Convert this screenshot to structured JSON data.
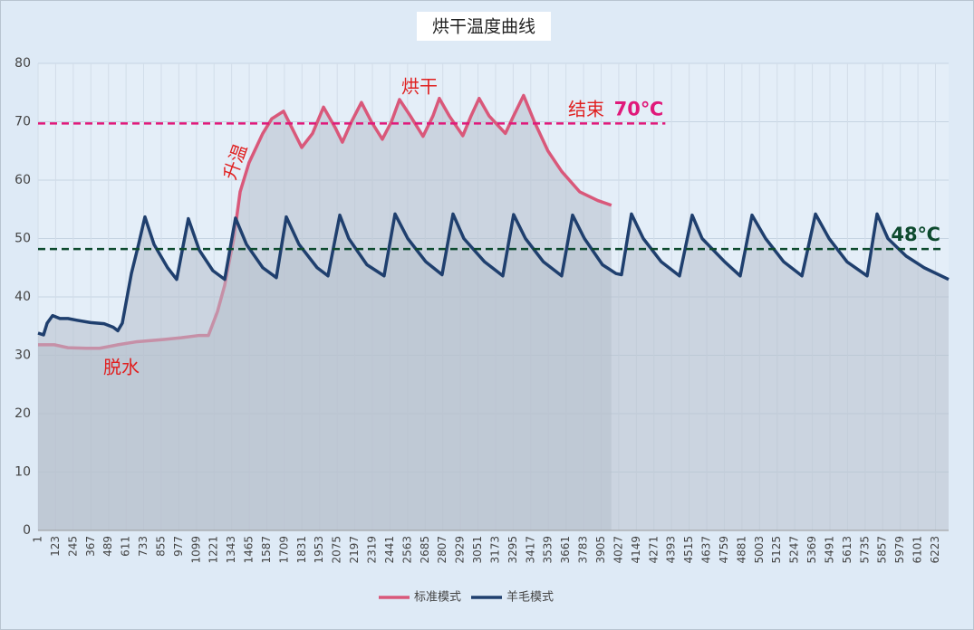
{
  "chart_data": {
    "type": "line",
    "title": "烘干温度曲线",
    "xlim": [
      1,
      6314
    ],
    "ylim": [
      0,
      80
    ],
    "xticks": [
      1,
      123,
      245,
      367,
      489,
      611,
      733,
      855,
      977,
      1099,
      1221,
      1343,
      1465,
      1587,
      1709,
      1831,
      1953,
      2075,
      2197,
      2319,
      2441,
      2563,
      2685,
      2807,
      2929,
      3051,
      3173,
      3295,
      3417,
      3539,
      3661,
      3783,
      3905,
      4027,
      4149,
      4271,
      4393,
      4515,
      4637,
      4759,
      4881,
      5003,
      5125,
      5247,
      5369,
      5491,
      5613,
      5735,
      5857,
      5979,
      6101,
      6223
    ],
    "yticks": [
      0,
      10,
      20,
      30,
      40,
      50,
      60,
      70,
      80
    ],
    "grid": true,
    "legend": "bottom",
    "series": [
      {
        "name": "标准模式",
        "color": "#d9587a",
        "x": [
          1,
          114,
          208,
          334,
          428,
          554,
          679,
          868,
          993,
          1119,
          1182,
          1245,
          1295,
          1358,
          1402,
          1464,
          1559,
          1621,
          1703,
          1760,
          1829,
          1904,
          1980,
          2061,
          2111,
          2174,
          2243,
          2312,
          2388,
          2451,
          2507,
          2582,
          2670,
          2739,
          2783,
          2852,
          2946,
          3003,
          3059,
          3128,
          3241,
          3298,
          3367,
          3442,
          3536,
          3631,
          3756,
          3882,
          3976
        ],
        "values": [
          31.8,
          31.8,
          31.3,
          31.2,
          31.2,
          31.8,
          32.3,
          32.7,
          33.0,
          33.4,
          33.4,
          37.5,
          42,
          50,
          58,
          63,
          68,
          70.5,
          71.8,
          69,
          65.6,
          68,
          72.5,
          69,
          66.5,
          70,
          73.3,
          70,
          67,
          70,
          73.8,
          71,
          67.5,
          71,
          74,
          71,
          67.6,
          71,
          74,
          71,
          68,
          71,
          74.5,
          70,
          65,
          61.5,
          58,
          56.5,
          55.7
        ]
      },
      {
        "name": "羊毛模式",
        "color": "#1f3f6e",
        "x": [
          1,
          39,
          64,
          102,
          152,
          208,
          271,
          365,
          459,
          522,
          554,
          585,
          648,
          698,
          742,
          805,
          899,
          962,
          1043,
          1119,
          1213,
          1295,
          1370,
          1446,
          1559,
          1653,
          1722,
          1810,
          1936,
          2011,
          2093,
          2155,
          2281,
          2400,
          2476,
          2564,
          2690,
          2802,
          2878,
          2953,
          3097,
          3223,
          3298,
          3380,
          3505,
          3631,
          3707,
          3789,
          3914,
          4008,
          4046,
          4115,
          4197,
          4322,
          4448,
          4536,
          4605,
          4762,
          4869,
          4951,
          5045,
          5171,
          5297,
          5391,
          5485,
          5610,
          5749,
          5818,
          5893,
          6019,
          6144,
          6314
        ],
        "values": [
          33.8,
          33.5,
          35.5,
          36.8,
          36.3,
          36.3,
          36,
          35.6,
          35.4,
          34.8,
          34.2,
          35.5,
          44,
          49,
          53.7,
          49,
          45,
          43,
          53.4,
          48,
          44.5,
          43,
          53.5,
          49,
          45,
          43.3,
          53.7,
          49,
          45,
          43.6,
          54,
          50,
          45.5,
          43.6,
          54.2,
          50,
          46,
          43.8,
          54.2,
          50,
          46,
          43.6,
          54.1,
          50,
          46,
          43.6,
          54,
          50,
          45.5,
          44,
          43.8,
          54.2,
          50,
          46,
          43.6,
          54,
          50,
          46,
          43.6,
          54,
          50,
          46,
          43.6,
          54.2,
          50,
          46,
          43.6,
          54.2,
          50,
          47,
          45,
          43
        ]
      }
    ],
    "hlines": [
      {
        "value": 69.7,
        "color": "#e0197a",
        "label": "70℃",
        "x_end": 4350
      },
      {
        "value": 48.2,
        "color": "#0d4a2e",
        "label": "48℃",
        "x_end": 6270
      }
    ],
    "annotations": [
      "脱水",
      "升温",
      "烘干",
      "结束"
    ]
  }
}
